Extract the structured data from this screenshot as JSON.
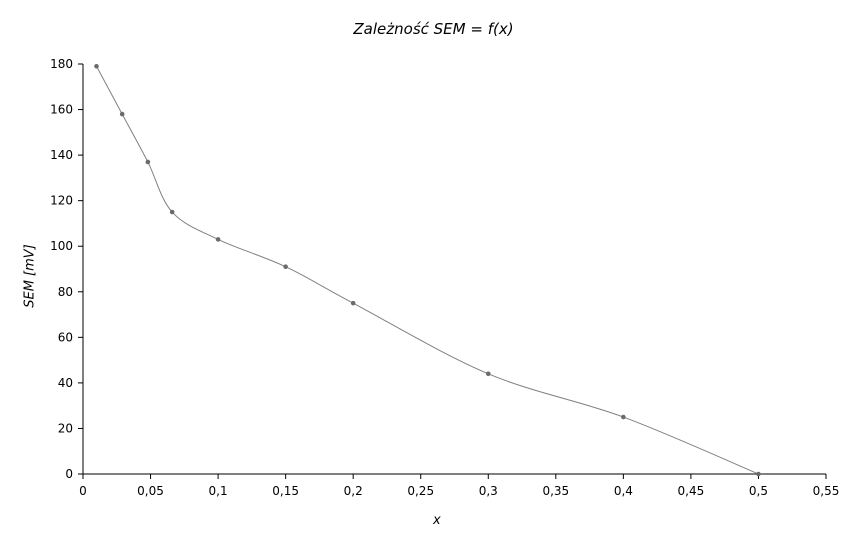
{
  "chart_data": {
    "type": "line",
    "title": "Zależność SEM = f(x)",
    "xlabel": "x",
    "ylabel": "SEM [mV]",
    "xlim": [
      0,
      0.55
    ],
    "ylim": [
      0,
      180
    ],
    "x_ticks": [
      "0",
      "0,05",
      "0,1",
      "0,15",
      "0,2",
      "0,25",
      "0,3",
      "0,35",
      "0,4",
      "0,45",
      "0,5",
      "0,55"
    ],
    "y_ticks": [
      "0",
      "20",
      "40",
      "60",
      "80",
      "100",
      "120",
      "140",
      "160",
      "180"
    ],
    "grid": false,
    "line_color": "#808080",
    "series": [
      {
        "x": [
          0.01,
          0.029,
          0.048,
          0.066,
          0.1,
          0.15,
          0.2,
          0.3,
          0.4,
          0.5
        ],
        "y": [
          179,
          158,
          137,
          115,
          103,
          91,
          75,
          44,
          25,
          0
        ]
      }
    ]
  }
}
